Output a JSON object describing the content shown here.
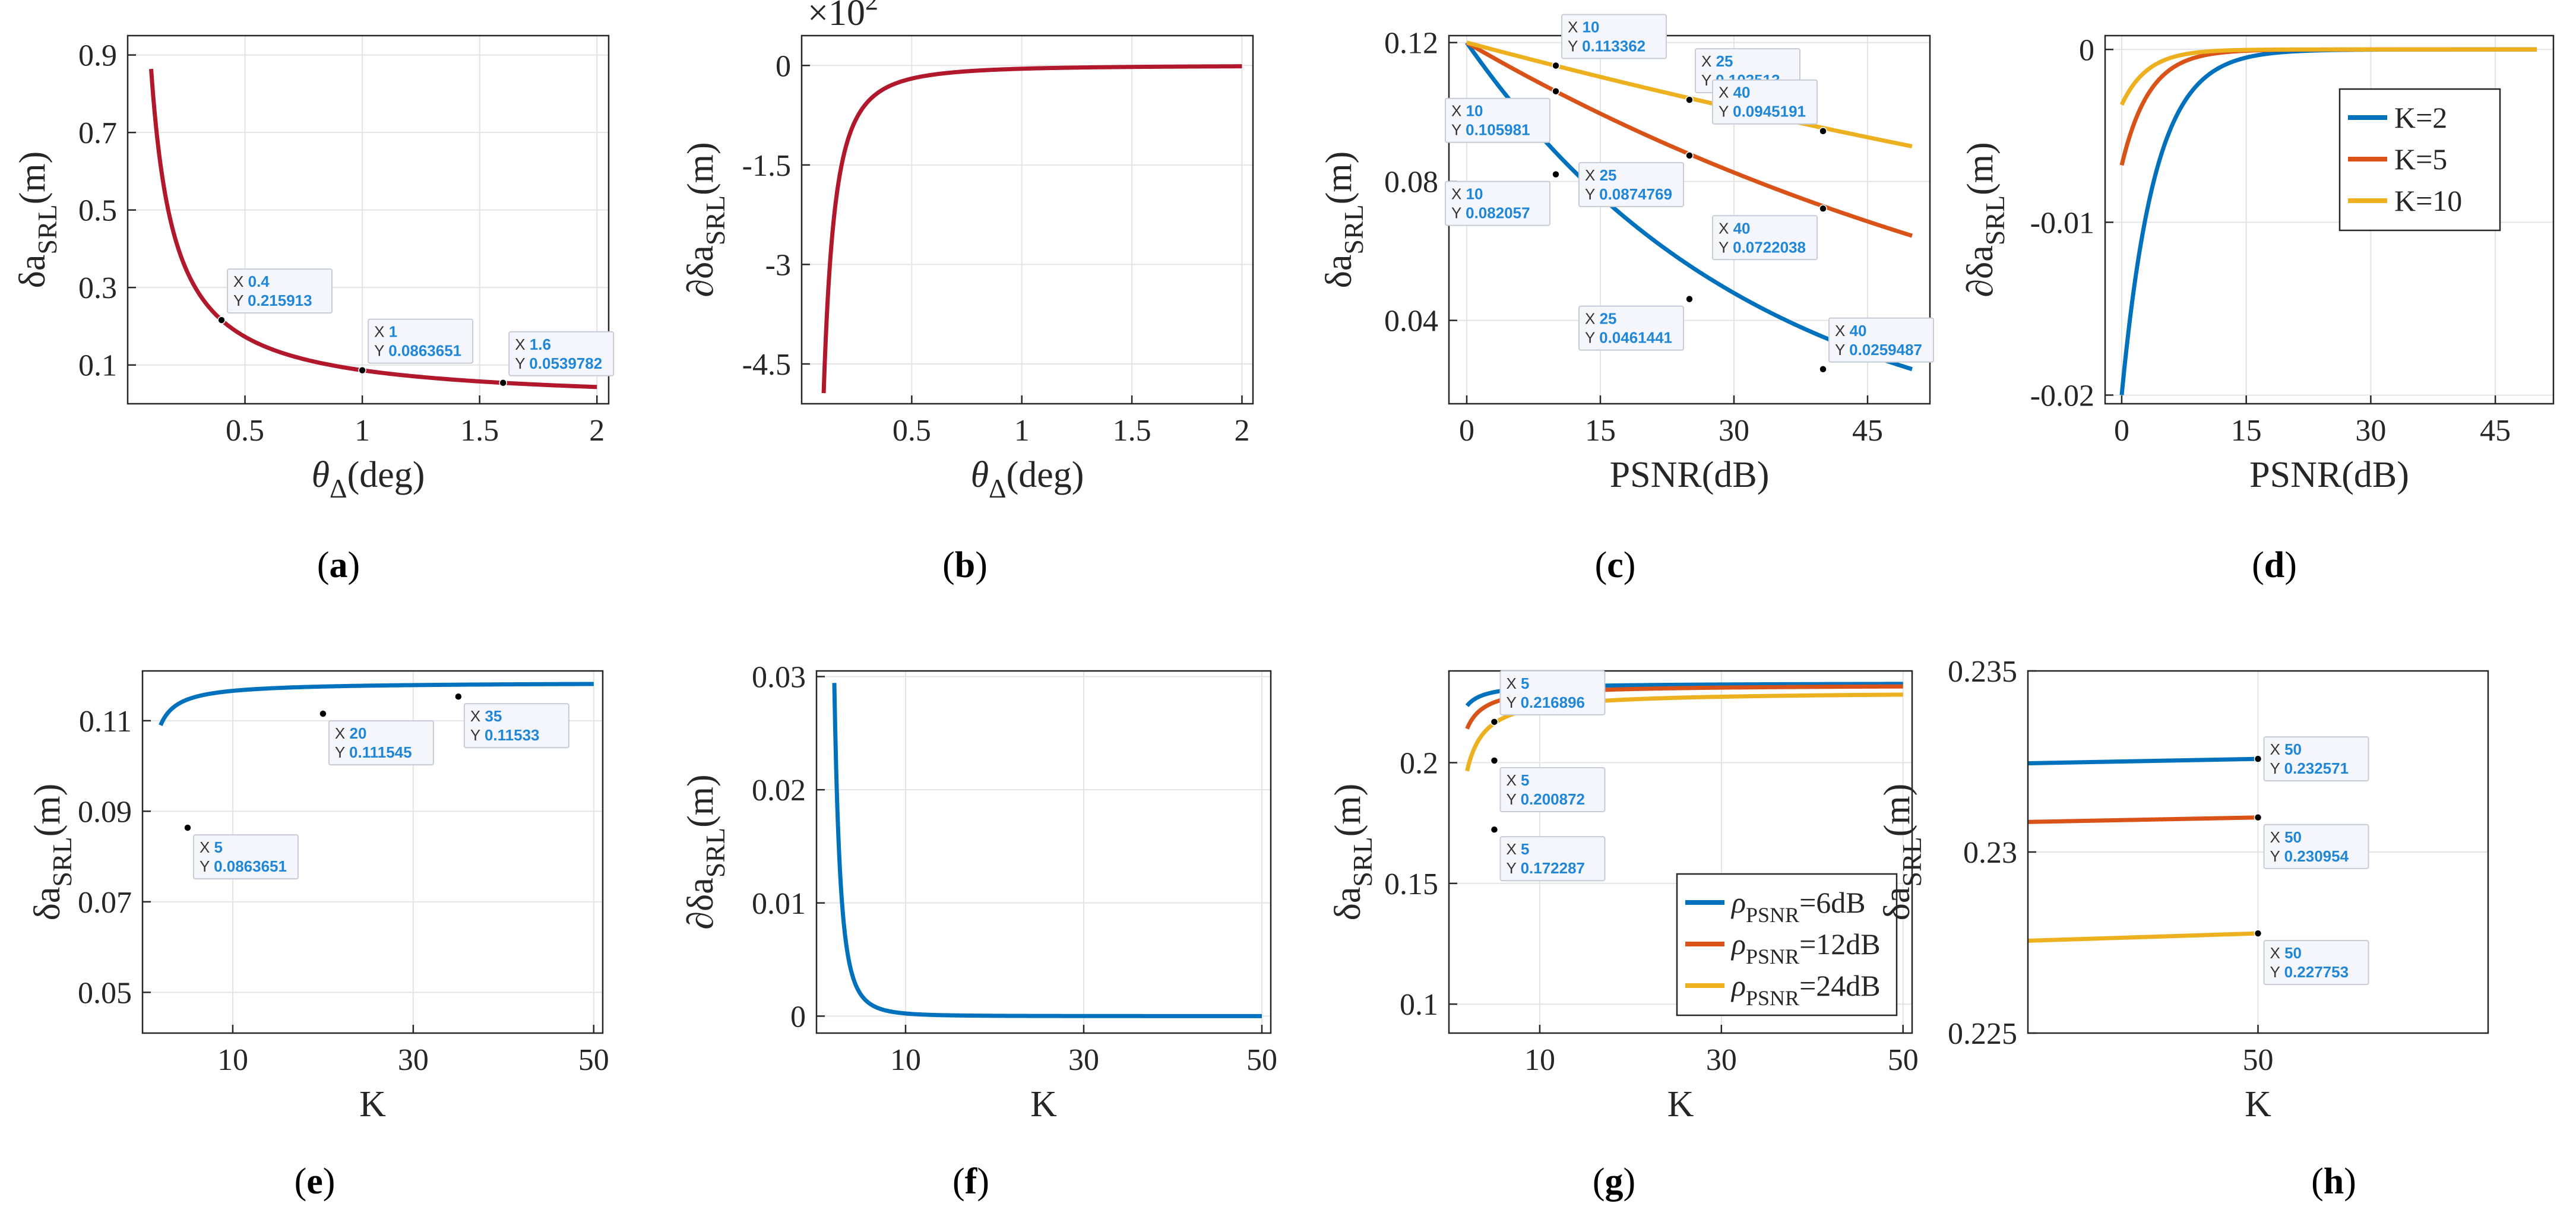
{
  "figure_labels": [
    "(a)",
    "(b)",
    "(c)",
    "(d)",
    "(e)",
    "(f)",
    "(g)",
    "(h)"
  ],
  "colors": {
    "dark_red": "#B2182B",
    "blue": "#0072BD",
    "orange": "#D95319",
    "yellow": "#EDB120",
    "tip_value": "#1f86d8"
  },
  "chart_data": [
    {
      "id": "a",
      "type": "line",
      "label": "(a)",
      "xlabel": "θΔ(deg)",
      "ylabel": "δa SRL (m)",
      "xlim": [
        0.0,
        2.05
      ],
      "ylim": [
        0.0,
        0.95
      ],
      "xticks": [
        0.5,
        1,
        1.5,
        2
      ],
      "xtick_labels": [
        "0.5",
        "1",
        "1.5",
        "2"
      ],
      "yticks": [
        0.1,
        0.3,
        0.5,
        0.7,
        0.9
      ],
      "ytick_labels": [
        "0.1",
        "0.3",
        "0.5",
        "0.7",
        "0.9"
      ],
      "series": [
        {
          "name": "",
          "color": "#B2182B",
          "model": {
            "kind": "inv",
            "a": 0.0864,
            "xmin": 0.1,
            "xmax": 2.0
          }
        }
      ],
      "datatips": [
        {
          "x": 0.4,
          "y": 0.215913,
          "xval": "0.4",
          "yval": "0.215913",
          "pos": "above-right"
        },
        {
          "x": 1,
          "y": 0.0863651,
          "xval": "1",
          "yval": "0.0863651",
          "pos": "above-right"
        },
        {
          "x": 1.6,
          "y": 0.0539782,
          "xval": "1.6",
          "yval": "0.0539782",
          "pos": "above-right"
        }
      ]
    },
    {
      "id": "b",
      "type": "line",
      "label": "(b)",
      "xlabel": "θΔ(deg)",
      "ylabel": "∂δa SRL (m)",
      "multiplier": "×10",
      "multiplier_exp": "2",
      "xlim": [
        0.0,
        2.05
      ],
      "ylim": [
        -5.1,
        0.45
      ],
      "xticks": [
        0.5,
        1,
        1.5,
        2
      ],
      "xtick_labels": [
        "0.5",
        "1",
        "1.5",
        "2"
      ],
      "yticks": [
        0,
        -1.5,
        -3,
        -4.5
      ],
      "ytick_labels": [
        "0",
        "-1.5",
        "-3",
        "-4.5"
      ],
      "series": [
        {
          "name": "",
          "color": "#B2182B",
          "model": {
            "kind": "inv2",
            "a": -0.0494,
            "xmin": 0.1,
            "xmax": 2.0
          }
        }
      ],
      "datatips": []
    },
    {
      "id": "c",
      "type": "line",
      "label": "(c)",
      "xlabel": "PSNR(dB)",
      "ylabel": "δa SRL (m)",
      "xlim": [
        -2,
        52
      ],
      "ylim": [
        0.016,
        0.122
      ],
      "xticks": [
        0,
        15,
        30,
        45
      ],
      "xtick_labels": [
        "0",
        "15",
        "30",
        "45"
      ],
      "yticks": [
        0.04,
        0.08,
        0.12
      ],
      "ytick_labels": [
        "0.04",
        "0.08",
        "0.12"
      ],
      "series": [
        {
          "name": "K=2",
          "color": "#0072BD",
          "model": {
            "kind": "exp",
            "a": 0.12,
            "k": 0.030627,
            "xmin": 0,
            "xmax": 50
          }
        },
        {
          "name": "K=5",
          "color": "#D95319",
          "model": {
            "kind": "exp",
            "a": 0.12,
            "k": 0.012459,
            "xmin": 0,
            "xmax": 50
          }
        },
        {
          "name": "K=10",
          "color": "#EDB120",
          "model": {
            "kind": "exp",
            "a": 0.12,
            "k": 0.005727,
            "xmin": 0,
            "xmax": 50
          }
        }
      ],
      "datatips": [
        {
          "x": 10,
          "y": 0.113362,
          "xval": "10",
          "yval": "0.113362",
          "pos": "above-right"
        },
        {
          "x": 25,
          "y": 0.103513,
          "xval": "25",
          "yval": "0.103513",
          "pos": "above-right"
        },
        {
          "x": 40,
          "y": 0.0945191,
          "xval": "40",
          "yval": "0.0945191",
          "pos": "above-left"
        },
        {
          "x": 10,
          "y": 0.105981,
          "xval": "10",
          "yval": "0.105981",
          "pos": "below-left"
        },
        {
          "x": 25,
          "y": 0.0874769,
          "xval": "25",
          "yval": "0.0874769",
          "pos": "below-left"
        },
        {
          "x": 40,
          "y": 0.0722038,
          "xval": "40",
          "yval": "0.0722038",
          "pos": "below-left"
        },
        {
          "x": 10,
          "y": 0.082057,
          "xval": "10",
          "yval": "0.082057",
          "pos": "below-left"
        },
        {
          "x": 25,
          "y": 0.0461441,
          "xval": "25",
          "yval": "0.0461441",
          "pos": "below-left"
        },
        {
          "x": 40,
          "y": 0.0259487,
          "xval": "40",
          "yval": "0.0259487",
          "pos": "above-right"
        }
      ]
    },
    {
      "id": "d",
      "type": "line",
      "label": "(d)",
      "xlabel": "PSNR(dB)",
      "ylabel": "∂δa SRL (m)",
      "xlim": [
        -2,
        52
      ],
      "ylim": [
        -0.0205,
        0.0008
      ],
      "xticks": [
        0,
        15,
        30,
        45
      ],
      "xtick_labels": [
        "0",
        "15",
        "30",
        "45"
      ],
      "yticks": [
        0,
        -0.01,
        -0.02
      ],
      "ytick_labels": [
        "0",
        "-0.01",
        "-0.02"
      ],
      "legend": "top-right",
      "series": [
        {
          "name": "K=2",
          "color": "#0072BD",
          "model": {
            "kind": "exp",
            "a": -0.02,
            "k": 0.25,
            "xmin": 0,
            "xmax": 50
          }
        },
        {
          "name": "K=5",
          "color": "#D95319",
          "model": {
            "kind": "exp",
            "a": -0.0067,
            "k": 0.3,
            "xmin": 0,
            "xmax": 50
          }
        },
        {
          "name": "K=10",
          "color": "#EDB120",
          "model": {
            "kind": "exp",
            "a": -0.0032,
            "k": 0.32,
            "xmin": 0,
            "xmax": 50
          }
        }
      ],
      "datatips": []
    },
    {
      "id": "e",
      "type": "line",
      "label": "(e)",
      "xlabel": "K",
      "ylabel": "δa SRL (m)",
      "xlim": [
        0,
        51
      ],
      "ylim": [
        0.041,
        0.121
      ],
      "xticks": [
        10,
        30,
        50
      ],
      "xtick_labels": [
        "10",
        "30",
        "50"
      ],
      "yticks": [
        0.05,
        0.07,
        0.09,
        0.11
      ],
      "ytick_labels": [
        "0.05",
        "0.07",
        "0.09",
        "0.11"
      ],
      "series": [
        {
          "name": "",
          "color": "#0072BD",
          "model": {
            "kind": "sat",
            "a": 0.1185,
            "b": 0.1604,
            "xmin": 2,
            "xmax": 50
          }
        }
      ],
      "datatips": [
        {
          "x": 5,
          "y": 0.0863651,
          "xval": "5",
          "yval": "0.0863651",
          "pos": "below-right"
        },
        {
          "x": 20,
          "y": 0.111545,
          "xval": "20",
          "yval": "0.111545",
          "pos": "below-right"
        },
        {
          "x": 35,
          "y": 0.11533,
          "xval": "35",
          "yval": "0.11533",
          "pos": "below-right"
        }
      ]
    },
    {
      "id": "f",
      "type": "line",
      "label": "(f)",
      "xlabel": "K",
      "ylabel": "∂δa SRL (m)",
      "xlim": [
        0,
        51
      ],
      "ylim": [
        -0.0015,
        0.0305
      ],
      "xticks": [
        10,
        30,
        50
      ],
      "xtick_labels": [
        "10",
        "30",
        "50"
      ],
      "yticks": [
        0,
        0.01,
        0.02,
        0.03
      ],
      "ytick_labels": [
        "0",
        "0.01",
        "0.02",
        "0.03"
      ],
      "series": [
        {
          "name": "",
          "color": "#0072BD",
          "model": {
            "kind": "pow",
            "a": 0.2355,
            "p": 3,
            "xmin": 2,
            "xmax": 50
          }
        }
      ],
      "datatips": []
    },
    {
      "id": "g",
      "type": "line",
      "label": "(g)",
      "xlabel": "K",
      "ylabel": "δa SRL (m)",
      "xlim": [
        0,
        51
      ],
      "ylim": [
        0.088,
        0.238
      ],
      "xticks": [
        10,
        30,
        50
      ],
      "xtick_labels": [
        "10",
        "30",
        "50"
      ],
      "yticks": [
        0.1,
        0.15,
        0.2
      ],
      "ytick_labels": [
        "0.1",
        "0.15",
        "0.2"
      ],
      "legend": "bottom-right",
      "legend_entries": [
        {
          "prefix": "ρ",
          "sub": "PSNR",
          "suffix": "=6dB"
        },
        {
          "prefix": "ρ",
          "sub": "PSNR",
          "suffix": "=12dB"
        },
        {
          "prefix": "ρ",
          "sub": "PSNR",
          "suffix": "=24dB"
        }
      ],
      "series": [
        {
          "name": "ρPSNR=6dB",
          "color": "#0072BD",
          "model": {
            "kind": "sat",
            "a": 0.233,
            "b": 0.0809,
            "xmin": 2,
            "xmax": 50
          }
        },
        {
          "name": "ρPSNR=12dB",
          "color": "#D95319",
          "model": {
            "kind": "sat",
            "a": 0.2323,
            "b": 0.1572,
            "xmin": 2,
            "xmax": 50
          }
        },
        {
          "name": "ρPSNR=24dB",
          "color": "#EDB120",
          "model": {
            "kind": "sat",
            "a": 0.2295,
            "b": 0.2872,
            "xmin": 2,
            "xmax": 50
          }
        }
      ],
      "datatips": [
        {
          "x": 5,
          "y": 0.216896,
          "xval": "5",
          "yval": "0.216896",
          "pos": "above-right"
        },
        {
          "x": 5,
          "y": 0.200872,
          "xval": "5",
          "yval": "0.200872",
          "pos": "below-right"
        },
        {
          "x": 5,
          "y": 0.172287,
          "xval": "5",
          "yval": "0.172287",
          "pos": "below-right"
        }
      ]
    },
    {
      "id": "h",
      "type": "line",
      "label": "(h)",
      "xlabel": "K",
      "ylabel": "δa SRL (m)",
      "xlim": [
        33,
        67
      ],
      "ylim": [
        0.225,
        0.235
      ],
      "xticks": [
        50
      ],
      "xtick_labels": [
        "50"
      ],
      "yticks": [
        0.225,
        0.23,
        0.235
      ],
      "ytick_labels": [
        "0.225",
        "0.23",
        "0.235"
      ],
      "series": [
        {
          "name": "ρPSNR=6dB",
          "color": "#0072BD",
          "model": {
            "kind": "lin",
            "x0": 33,
            "y0": 0.23245,
            "x1": 50,
            "y1": 0.232571
          }
        },
        {
          "name": "ρPSNR=12dB",
          "color": "#D95319",
          "model": {
            "kind": "lin",
            "x0": 33,
            "y0": 0.23083,
            "x1": 50,
            "y1": 0.230954
          }
        },
        {
          "name": "ρPSNR=24dB",
          "color": "#EDB120",
          "model": {
            "kind": "lin",
            "x0": 33,
            "y0": 0.22755,
            "x1": 50,
            "y1": 0.227753
          }
        }
      ],
      "datatips": [
        {
          "x": 50,
          "y": 0.232571,
          "xval": "50",
          "yval": "0.232571",
          "pos": "right"
        },
        {
          "x": 50,
          "y": 0.230954,
          "xval": "50",
          "yval": "0.230954",
          "pos": "below-right"
        },
        {
          "x": 50,
          "y": 0.227753,
          "xval": "50",
          "yval": "0.227753",
          "pos": "below-right"
        }
      ]
    }
  ]
}
